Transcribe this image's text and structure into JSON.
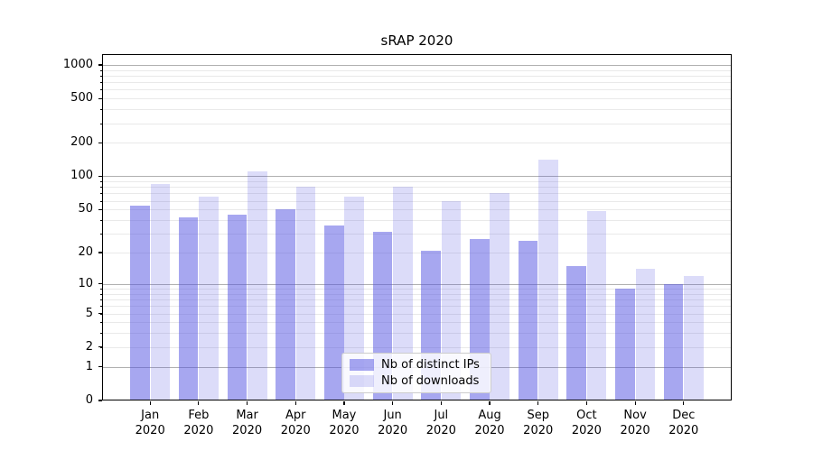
{
  "figure": {
    "background": "#ffffff"
  },
  "chart_data": {
    "type": "bar",
    "title": "sRAP 2020",
    "xlabel": "",
    "ylabel": "",
    "year_label": "2020",
    "categories": [
      "Jan",
      "Feb",
      "Mar",
      "Apr",
      "May",
      "Jun",
      "Jul",
      "Aug",
      "Sep",
      "Oct",
      "Nov",
      "Dec"
    ],
    "series": [
      {
        "name": "Nb of distinct IPs",
        "color": "#5050e1",
        "alpha": 0.5,
        "values": [
          54,
          42,
          45,
          50,
          36,
          31,
          21,
          27,
          26,
          15,
          9,
          10
        ]
      },
      {
        "name": "Nb of downloads",
        "color": "#5050e1",
        "alpha": 0.2,
        "values": [
          85,
          65,
          110,
          80,
          66,
          80,
          60,
          70,
          140,
          48,
          14,
          12
        ]
      }
    ],
    "yscale": "log1p",
    "yticks": [
      0,
      1,
      2,
      5,
      10,
      20,
      50,
      100,
      200,
      500,
      1000
    ],
    "ylim": [
      0,
      1250
    ],
    "grid": {
      "major_on": true,
      "minor_on": true
    },
    "legend_position": "lower center",
    "colors": {
      "major_grid": "#b0b0b0",
      "minor_grid": "#e9e9e9",
      "spine": "#000000",
      "text": "#000000"
    }
  }
}
